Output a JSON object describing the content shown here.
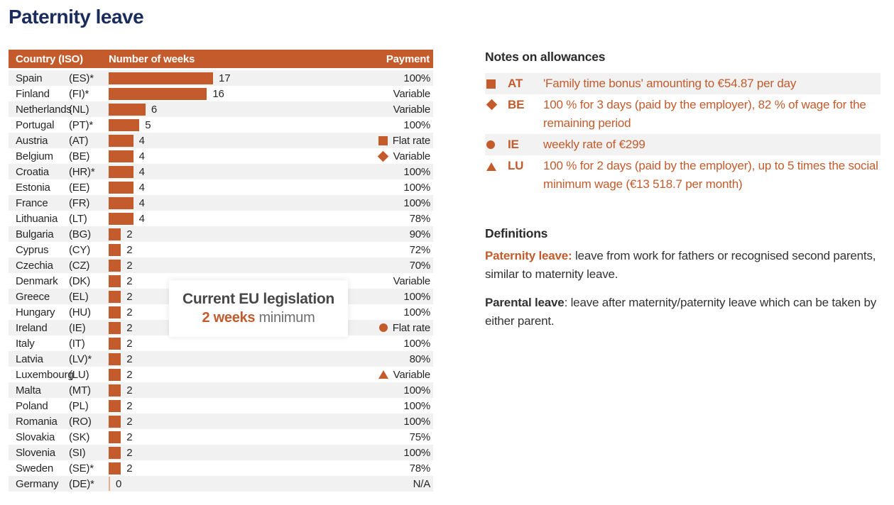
{
  "title": "Paternity leave",
  "colors": {
    "accent_orange": "#C35B2C",
    "pale_orange_zero_bar": "#EBAD8D",
    "title_navy": "#1A2C5B",
    "row_stripe_gray": "#F1F1F1"
  },
  "chart_data": {
    "type": "bar",
    "title": "Paternity leave",
    "orientation": "horizontal",
    "unit": "weeks",
    "xlim": [
      0,
      17
    ],
    "columns": {
      "country": "Country (ISO)",
      "weeks": "Number of weeks",
      "payment": "Payment"
    },
    "rows": [
      {
        "country": "Spain",
        "iso": "(ES)*",
        "weeks": 17,
        "payment": "100%",
        "symbol": null
      },
      {
        "country": "Finland",
        "iso": "(FI)*",
        "weeks": 16,
        "payment": "Variable",
        "symbol": null
      },
      {
        "country": "Netherlands",
        "iso": "(NL)",
        "weeks": 6,
        "payment": "Variable",
        "symbol": null
      },
      {
        "country": "Portugal",
        "iso": "(PT)*",
        "weeks": 5,
        "payment": "100%",
        "symbol": null
      },
      {
        "country": "Austria",
        "iso": "(AT)",
        "weeks": 4,
        "payment": "Flat rate",
        "symbol": "square"
      },
      {
        "country": "Belgium",
        "iso": "(BE)",
        "weeks": 4,
        "payment": "Variable",
        "symbol": "diamond"
      },
      {
        "country": "Croatia",
        "iso": "(HR)*",
        "weeks": 4,
        "payment": "100%",
        "symbol": null
      },
      {
        "country": "Estonia",
        "iso": "(EE)",
        "weeks": 4,
        "payment": "100%",
        "symbol": null
      },
      {
        "country": "France",
        "iso": "(FR)",
        "weeks": 4,
        "payment": "100%",
        "symbol": null
      },
      {
        "country": "Lithuania",
        "iso": "(LT)",
        "weeks": 4,
        "payment": "78%",
        "symbol": null
      },
      {
        "country": "Bulgaria",
        "iso": "(BG)",
        "weeks": 2,
        "payment": "90%",
        "symbol": null
      },
      {
        "country": "Cyprus",
        "iso": "(CY)",
        "weeks": 2,
        "payment": "72%",
        "symbol": null
      },
      {
        "country": "Czechia",
        "iso": "(CZ)",
        "weeks": 2,
        "payment": "70%",
        "symbol": null
      },
      {
        "country": "Denmark",
        "iso": "(DK)",
        "weeks": 2,
        "payment": "Variable",
        "symbol": null
      },
      {
        "country": "Greece",
        "iso": "(EL)",
        "weeks": 2,
        "payment": "100%",
        "symbol": null
      },
      {
        "country": "Hungary",
        "iso": "(HU)",
        "weeks": 2,
        "payment": "100%",
        "symbol": null
      },
      {
        "country": "Ireland",
        "iso": "(IE)",
        "weeks": 2,
        "payment": "Flat rate",
        "symbol": "circle"
      },
      {
        "country": "Italy",
        "iso": "(IT)",
        "weeks": 2,
        "payment": "100%",
        "symbol": null
      },
      {
        "country": "Latvia",
        "iso": "(LV)*",
        "weeks": 2,
        "payment": "80%",
        "symbol": null
      },
      {
        "country": "Luxembourg",
        "iso": "(LU)",
        "weeks": 2,
        "payment": "Variable",
        "symbol": "triangle"
      },
      {
        "country": "Malta",
        "iso": "(MT)",
        "weeks": 2,
        "payment": "100%",
        "symbol": null
      },
      {
        "country": "Poland",
        "iso": "(PL)",
        "weeks": 2,
        "payment": "100%",
        "symbol": null
      },
      {
        "country": "Romania",
        "iso": "(RO)",
        "weeks": 2,
        "payment": "100%",
        "symbol": null
      },
      {
        "country": "Slovakia",
        "iso": "(SK)",
        "weeks": 2,
        "payment": "75%",
        "symbol": null
      },
      {
        "country": "Slovenia",
        "iso": "(SI)",
        "weeks": 2,
        "payment": "100%",
        "symbol": null
      },
      {
        "country": "Sweden",
        "iso": "(SE)*",
        "weeks": 2,
        "payment": "78%",
        "symbol": null
      },
      {
        "country": "Germany",
        "iso": "(DE)*",
        "weeks": 0,
        "payment": "N/A",
        "symbol": null
      }
    ],
    "annotation": {
      "title": "Current EU legislation",
      "value": "2 weeks",
      "suffix": "minimum"
    }
  },
  "notes": {
    "heading": "Notes on allowances",
    "items": [
      {
        "symbol": "square",
        "code": "AT",
        "text": "'Family time bonus' amounting to €54.87 per day"
      },
      {
        "symbol": "diamond",
        "code": "BE",
        "text": "100 % for 3 days (paid by the employer), 82 % of wage for the remaining period"
      },
      {
        "symbol": "circle",
        "code": "IE",
        "text": "weekly rate of €299"
      },
      {
        "symbol": "triangle",
        "code": "LU",
        "text": "100 % for 2 days (paid by the employer), up to 5 times the social minimum wage (€13 518.7 per month)"
      }
    ]
  },
  "definitions": {
    "heading": "Definitions",
    "items": [
      {
        "term": "Paternity leave:",
        "style": "orange",
        "text": " leave from work for fathers or recognised second parents, similar to maternity leave."
      },
      {
        "term": "Parental leave",
        "style": "dark",
        "text": ": leave after maternity/paternity leave which can be taken by either parent."
      }
    ]
  }
}
